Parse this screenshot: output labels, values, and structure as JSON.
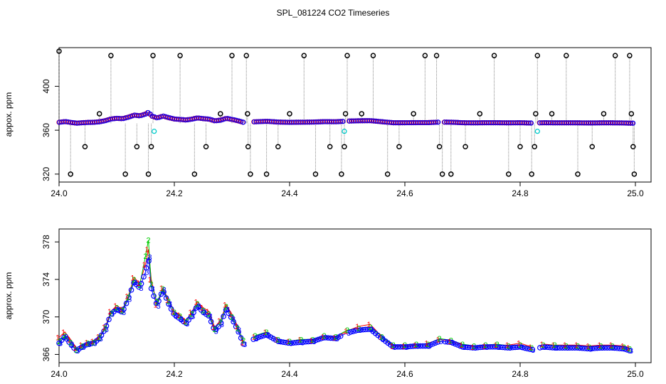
{
  "title": "SPL_081224  CO2 Timeseries",
  "colors": {
    "background": "#ffffff",
    "axis": "#000000",
    "outlier_circle": "#000000",
    "drop_line": "#888888",
    "series_1": "#ff0000",
    "series_2": "#00cc00",
    "series_3": "#0000ff",
    "circle_marker": "#00cccc"
  },
  "chart_data": [
    {
      "type": "scatter",
      "panel": "top",
      "ylabel": "appox. ppm",
      "xlabel": "",
      "xlim": [
        24.0,
        25.0
      ],
      "ylim": [
        316,
        432
      ],
      "x_ticks": [
        "24.0",
        "24.2",
        "24.4",
        "24.6",
        "24.8",
        "25.0"
      ],
      "y_ticks": [
        "320",
        "360",
        "400"
      ],
      "grid": false,
      "baseline_ppm": 366,
      "outliers": [
        {
          "x": 24.0,
          "y": 432
        },
        {
          "x": 24.02,
          "y": 320
        },
        {
          "x": 24.045,
          "y": 345
        },
        {
          "x": 24.07,
          "y": 375
        },
        {
          "x": 24.09,
          "y": 428
        },
        {
          "x": 24.115,
          "y": 320
        },
        {
          "x": 24.135,
          "y": 345
        },
        {
          "x": 24.155,
          "y": 320
        },
        {
          "x": 24.16,
          "y": 345
        },
        {
          "x": 24.163,
          "y": 428
        },
        {
          "x": 24.21,
          "y": 428
        },
        {
          "x": 24.235,
          "y": 320
        },
        {
          "x": 24.255,
          "y": 345
        },
        {
          "x": 24.28,
          "y": 375
        },
        {
          "x": 24.3,
          "y": 428
        },
        {
          "x": 24.325,
          "y": 428
        },
        {
          "x": 24.327,
          "y": 375
        },
        {
          "x": 24.328,
          "y": 345
        },
        {
          "x": 24.332,
          "y": 320
        },
        {
          "x": 24.36,
          "y": 320
        },
        {
          "x": 24.38,
          "y": 345
        },
        {
          "x": 24.4,
          "y": 375
        },
        {
          "x": 24.425,
          "y": 428
        },
        {
          "x": 24.445,
          "y": 320
        },
        {
          "x": 24.47,
          "y": 345
        },
        {
          "x": 24.49,
          "y": 320
        },
        {
          "x": 24.495,
          "y": 345
        },
        {
          "x": 24.497,
          "y": 375
        },
        {
          "x": 24.5,
          "y": 428
        },
        {
          "x": 24.525,
          "y": 375
        },
        {
          "x": 24.545,
          "y": 428
        },
        {
          "x": 24.57,
          "y": 320
        },
        {
          "x": 24.59,
          "y": 345
        },
        {
          "x": 24.615,
          "y": 375
        },
        {
          "x": 24.635,
          "y": 428
        },
        {
          "x": 24.655,
          "y": 428
        },
        {
          "x": 24.66,
          "y": 345
        },
        {
          "x": 24.665,
          "y": 320
        },
        {
          "x": 24.68,
          "y": 320
        },
        {
          "x": 24.705,
          "y": 345
        },
        {
          "x": 24.73,
          "y": 375
        },
        {
          "x": 24.755,
          "y": 428
        },
        {
          "x": 24.78,
          "y": 320
        },
        {
          "x": 24.8,
          "y": 345
        },
        {
          "x": 24.82,
          "y": 320
        },
        {
          "x": 24.825,
          "y": 345
        },
        {
          "x": 24.827,
          "y": 375
        },
        {
          "x": 24.83,
          "y": 428
        },
        {
          "x": 24.855,
          "y": 375
        },
        {
          "x": 24.88,
          "y": 428
        },
        {
          "x": 24.9,
          "y": 320
        },
        {
          "x": 24.925,
          "y": 345
        },
        {
          "x": 24.945,
          "y": 375
        },
        {
          "x": 24.965,
          "y": 428
        },
        {
          "x": 24.99,
          "y": 428
        },
        {
          "x": 24.993,
          "y": 375
        },
        {
          "x": 24.996,
          "y": 345
        },
        {
          "x": 24.998,
          "y": 320
        }
      ],
      "cyan_markers": [
        {
          "x": 24.165,
          "y": 359
        },
        {
          "x": 24.495,
          "y": 359
        },
        {
          "x": 24.83,
          "y": 359
        }
      ]
    },
    {
      "type": "line",
      "panel": "bottom",
      "ylabel": "approx. ppm",
      "xlabel": "",
      "xlim": [
        24.0,
        25.0
      ],
      "ylim": [
        365.5,
        379
      ],
      "x_ticks": [
        "24.0",
        "24.2",
        "24.4",
        "24.6",
        "24.8",
        "25.0"
      ],
      "y_ticks": [
        "366",
        "370",
        "374",
        "378"
      ],
      "grid": false,
      "marker_labels": [
        "1",
        "2",
        "3"
      ],
      "gaps": [
        [
          24.322,
          24.335
        ],
        [
          24.492,
          24.502
        ],
        [
          24.658,
          24.668
        ],
        [
          24.822,
          24.832
        ]
      ],
      "x": [
        24.0,
        24.01,
        24.02,
        24.03,
        24.04,
        24.05,
        24.06,
        24.07,
        24.08,
        24.09,
        24.1,
        24.11,
        24.12,
        24.13,
        24.14,
        24.15,
        24.155,
        24.16,
        24.17,
        24.18,
        24.19,
        24.2,
        24.21,
        24.22,
        24.23,
        24.24,
        24.25,
        24.26,
        24.27,
        24.28,
        24.29,
        24.3,
        24.31,
        24.32,
        24.34,
        24.36,
        24.38,
        24.4,
        24.42,
        24.44,
        24.46,
        24.48,
        24.5,
        24.52,
        24.54,
        24.56,
        24.58,
        24.6,
        24.62,
        24.64,
        24.66,
        24.68,
        24.7,
        24.72,
        24.74,
        24.76,
        24.78,
        24.8,
        24.82,
        24.84,
        24.86,
        24.88,
        24.9,
        24.92,
        24.94,
        24.96,
        24.98,
        24.99
      ],
      "series": [
        {
          "name": "1",
          "values": [
            367.8,
            368.4,
            367.6,
            366.7,
            367.0,
            367.3,
            367.4,
            367.9,
            368.9,
            370.6,
            371.2,
            370.8,
            372.2,
            374.2,
            373.6,
            375.6,
            377.2,
            374.0,
            371.3,
            373.1,
            371.8,
            370.6,
            370.2,
            369.6,
            370.5,
            371.6,
            371.0,
            370.6,
            368.9,
            369.6,
            371.3,
            370.3,
            369.0,
            367.3,
            367.9,
            368.4,
            367.6,
            367.4,
            367.6,
            367.5,
            367.9,
            367.8,
            368.5,
            369.0,
            369.2,
            367.9,
            366.9,
            366.9,
            367.0,
            367.2,
            367.6,
            367.4,
            367.0,
            366.8,
            366.9,
            367.0,
            367.0,
            367.2,
            366.8,
            367.1,
            367.0,
            367.0,
            367.0,
            366.9,
            367.0,
            367.0,
            366.9,
            366.7
          ]
        },
        {
          "name": "2",
          "values": [
            367.4,
            368.0,
            367.3,
            366.5,
            366.9,
            367.2,
            367.3,
            367.8,
            368.8,
            370.4,
            371.0,
            370.7,
            372.1,
            374.0,
            373.4,
            376.5,
            378.2,
            373.5,
            371.6,
            373.0,
            371.7,
            370.5,
            370.1,
            369.5,
            370.3,
            371.4,
            370.7,
            370.3,
            368.7,
            369.5,
            371.1,
            370.0,
            368.8,
            367.5,
            368.0,
            368.4,
            367.6,
            367.4,
            367.6,
            367.6,
            368.0,
            367.9,
            368.6,
            368.8,
            368.9,
            367.9,
            367.0,
            367.0,
            367.1,
            367.1,
            367.7,
            367.5,
            367.1,
            366.9,
            367.0,
            367.1,
            366.9,
            367.0,
            366.7,
            367.0,
            367.0,
            366.9,
            366.9,
            366.8,
            366.9,
            366.9,
            366.8,
            366.6
          ]
        },
        {
          "name": "3",
          "values": [
            367.2,
            367.9,
            367.1,
            366.4,
            366.8,
            367.1,
            367.2,
            367.7,
            368.7,
            370.3,
            370.8,
            370.5,
            371.9,
            373.7,
            373.1,
            374.8,
            376.4,
            373.0,
            371.2,
            372.9,
            371.4,
            370.2,
            369.8,
            369.3,
            370.1,
            371.2,
            370.5,
            370.1,
            368.5,
            369.2,
            370.8,
            369.8,
            368.6,
            367.1,
            367.7,
            368.1,
            367.4,
            367.2,
            367.3,
            367.4,
            367.8,
            367.7,
            368.3,
            368.6,
            368.7,
            367.7,
            366.8,
            366.8,
            366.9,
            366.9,
            367.4,
            367.3,
            366.8,
            366.7,
            366.8,
            366.8,
            366.7,
            366.8,
            366.5,
            366.8,
            366.7,
            366.7,
            366.7,
            366.6,
            366.7,
            366.7,
            366.6,
            366.4
          ]
        }
      ]
    }
  ]
}
